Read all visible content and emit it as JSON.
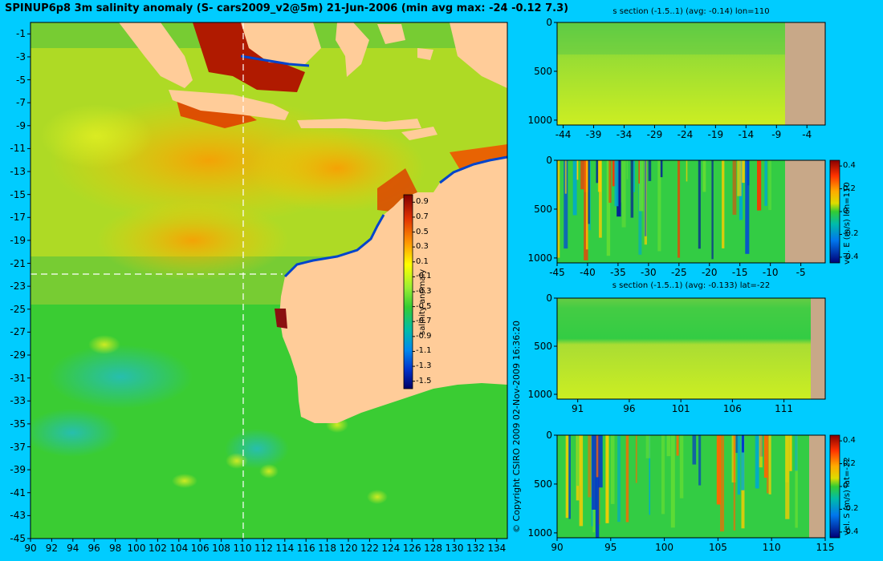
{
  "title": "SPINUP6p8 3m salinity anomaly (S- cars2009_v2@5m) 21-Jun-2006 (min avg max: -24 -0.12 7.3)",
  "copyright": "© Copyright CSIRO 2009   02-Nov-2009 16:36:20",
  "colors": {
    "background": "#00ccff",
    "land": "#ffcc99",
    "section_land": "#c8a888",
    "ocean_base": "#33cc33"
  },
  "chart_data": [
    {
      "type": "heatmap",
      "panel": "map",
      "title": "SPINUP6p8 3m salinity anomaly (S- cars2009_v2@5m) 21-Jun-2006 (min avg max: -24 -0.12 7.3)",
      "x_ticks": [
        "90",
        "92",
        "94",
        "96",
        "98",
        "100",
        "102",
        "104",
        "106",
        "108",
        "110",
        "112",
        "114",
        "116",
        "118",
        "120",
        "122",
        "124",
        "126",
        "128",
        "130",
        "132",
        "134"
      ],
      "y_ticks": [
        "-1",
        "-3",
        "-5",
        "-7",
        "-9",
        "-11",
        "-13",
        "-15",
        "-17",
        "-19",
        "-21",
        "-23",
        "-25",
        "-27",
        "-29",
        "-31",
        "-33",
        "-35",
        "-37",
        "-39",
        "-41",
        "-43",
        "-45"
      ],
      "xlim": [
        90,
        135
      ],
      "ylim": [
        -45,
        0
      ],
      "section_lon": 110,
      "section_lat": -22,
      "colorbar": {
        "label": "salinity anomaly",
        "ticks": [
          "0.9",
          "0.7",
          "0.5",
          "0.3",
          "0.1",
          "-0.1",
          "-0.3",
          "-0.5",
          "-0.7",
          "-0.9",
          "-1.1",
          "-1.3",
          "-1.5"
        ],
        "range": [
          -1.6,
          1.0
        ]
      }
    },
    {
      "type": "heatmap",
      "panel": "section1",
      "title": "s section (-1.5..1) (avg: -0.14) lon=110",
      "x_ticks": [
        "-44",
        "-39",
        "-34",
        "-29",
        "-24",
        "-19",
        "-14",
        "-9",
        "-4"
      ],
      "y_ticks": [
        "0",
        "500",
        "1000"
      ],
      "xlim": [
        -45,
        -1
      ],
      "ylim": [
        1050,
        0
      ]
    },
    {
      "type": "heatmap",
      "panel": "section2",
      "title": "",
      "x_ticks": [
        "-45",
        "-40",
        "-35",
        "-30",
        "-25",
        "-20",
        "-15",
        "-10",
        "-5"
      ],
      "y_ticks": [
        "0",
        "500",
        "1000"
      ],
      "xlim": [
        -45,
        -1
      ],
      "ylim": [
        1050,
        0
      ],
      "colorbar": {
        "label": "vel. E (m/s) lon=110",
        "ticks": [
          "0.4",
          "0.2",
          "0",
          "-0.2",
          "-0.4"
        ],
        "range": [
          -0.45,
          0.45
        ]
      }
    },
    {
      "type": "heatmap",
      "panel": "section3",
      "title": "s section (-1.5..1) (avg: -0.133) lat=-22",
      "x_ticks": [
        "91",
        "96",
        "101",
        "106",
        "111"
      ],
      "y_ticks": [
        "0",
        "500",
        "1000"
      ],
      "xlim": [
        89,
        115
      ],
      "ylim": [
        1050,
        0
      ]
    },
    {
      "type": "heatmap",
      "panel": "section4",
      "title": "",
      "x_ticks": [
        "90",
        "95",
        "100",
        "105",
        "110",
        "115"
      ],
      "y_ticks": [
        "0",
        "500",
        "1000"
      ],
      "xlim": [
        90,
        115
      ],
      "ylim": [
        1050,
        0
      ],
      "colorbar": {
        "label": "vel. S (m/s) lat=-22",
        "ticks": [
          "0.4",
          "0.2",
          "0",
          "-0.2",
          "-0.4"
        ],
        "range": [
          -0.45,
          0.45
        ]
      }
    }
  ]
}
